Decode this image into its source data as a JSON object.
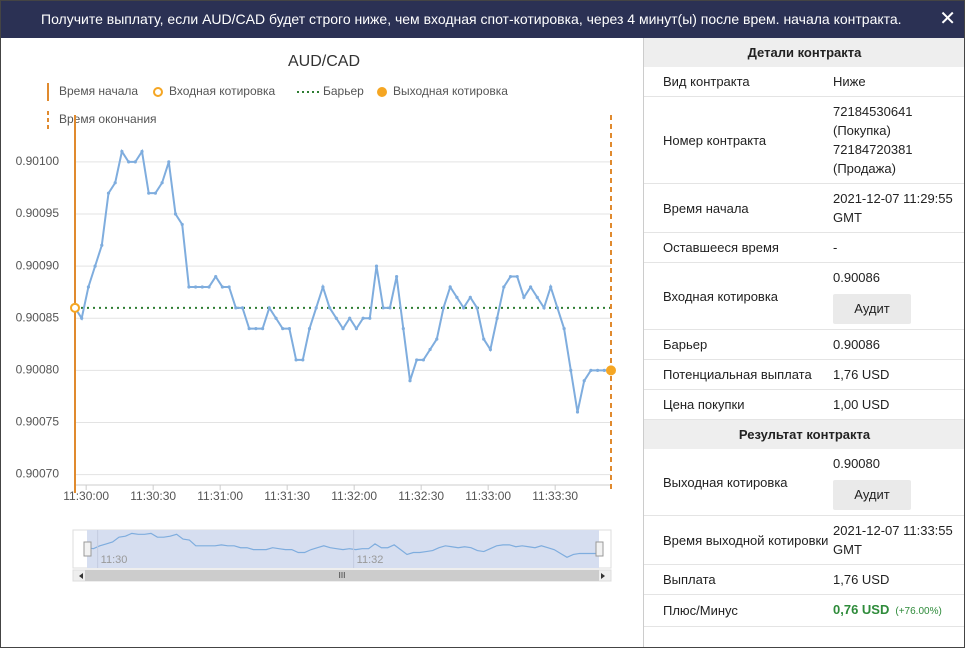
{
  "header": {
    "title": "Получите выплату, если AUD/CAD будет строго ниже, чем входная спот-котировка, через 4 минут(ы) после врем. начала контракта.",
    "close": "✕"
  },
  "chart_data": {
    "type": "line",
    "title": "AUD/CAD",
    "x": [
      "11:29:55",
      "11:29:58",
      "11:30:01",
      "11:30:04",
      "11:30:07",
      "11:30:10",
      "11:30:13",
      "11:30:16",
      "11:30:19",
      "11:30:22",
      "11:30:25",
      "11:30:28",
      "11:30:31",
      "11:30:34",
      "11:30:37",
      "11:30:40",
      "11:30:43",
      "11:30:46",
      "11:30:49",
      "11:30:52",
      "11:30:55",
      "11:30:58",
      "11:31:01",
      "11:31:04",
      "11:31:07",
      "11:31:10",
      "11:31:13",
      "11:31:16",
      "11:31:19",
      "11:31:22",
      "11:31:25",
      "11:31:28",
      "11:31:31",
      "11:31:34",
      "11:31:37",
      "11:31:40",
      "11:31:43",
      "11:31:46",
      "11:31:49",
      "11:31:52",
      "11:31:55",
      "11:31:58",
      "11:32:01",
      "11:32:04",
      "11:32:07",
      "11:32:10",
      "11:32:13",
      "11:32:16",
      "11:32:19",
      "11:32:22",
      "11:32:25",
      "11:32:28",
      "11:32:31",
      "11:32:34",
      "11:32:37",
      "11:32:40",
      "11:32:43",
      "11:32:46",
      "11:32:49",
      "11:32:52",
      "11:32:55",
      "11:32:58",
      "11:33:01",
      "11:33:04",
      "11:33:07",
      "11:33:10",
      "11:33:13",
      "11:33:16",
      "11:33:19",
      "11:33:22",
      "11:33:25",
      "11:33:28",
      "11:33:31",
      "11:33:34",
      "11:33:37",
      "11:33:40",
      "11:33:43",
      "11:33:46",
      "11:33:49",
      "11:33:52",
      "11:33:55"
    ],
    "series": [
      {
        "color": "#7fadde",
        "values": [
          0.90086,
          0.90085,
          0.90088,
          0.9009,
          0.90092,
          0.90097,
          0.90098,
          0.90101,
          0.901,
          0.901,
          0.90101,
          0.90097,
          0.90097,
          0.90098,
          0.901,
          0.90095,
          0.90094,
          0.90088,
          0.90088,
          0.90088,
          0.90088,
          0.90089,
          0.90088,
          0.90088,
          0.90086,
          0.90086,
          0.90084,
          0.90084,
          0.90084,
          0.90086,
          0.90085,
          0.90084,
          0.90084,
          0.90081,
          0.90081,
          0.90084,
          0.90086,
          0.90088,
          0.90086,
          0.90085,
          0.90084,
          0.90085,
          0.90084,
          0.90085,
          0.90085,
          0.9009,
          0.90086,
          0.90086,
          0.90089,
          0.90084,
          0.90079,
          0.90081,
          0.90081,
          0.90082,
          0.90083,
          0.90086,
          0.90088,
          0.90087,
          0.90086,
          0.90087,
          0.90086,
          0.90083,
          0.90082,
          0.90085,
          0.90088,
          0.90089,
          0.90089,
          0.90087,
          0.90088,
          0.90087,
          0.90086,
          0.90088,
          0.90086,
          0.90084,
          0.9008,
          0.90076,
          0.90079,
          0.9008,
          0.9008,
          0.9008,
          0.9008
        ]
      }
    ],
    "start_line": {
      "name": "Время начала",
      "value": "11:29:55",
      "color": "#e08a2e"
    },
    "entry_spot": {
      "name": "Входная котировка",
      "value": 0.90086,
      "color": "#f5a623"
    },
    "barrier": {
      "name": "Барьер",
      "value": 0.90086,
      "color": "#2e7d32"
    },
    "exit_spot": {
      "name": "Выходная котировка",
      "value": 0.9008,
      "color": "#f5a623"
    },
    "end_line": {
      "name": "Время окончания",
      "value": "11:33:55",
      "color": "#e08a2e"
    },
    "xlim": [
      "11:29:55",
      "11:33:55"
    ],
    "xticks": [
      "11:30:00",
      "11:30:30",
      "11:31:00",
      "11:31:30",
      "11:32:00",
      "11:32:30",
      "11:33:00",
      "11:33:30"
    ],
    "ylim": [
      0.90069,
      0.901045
    ],
    "yticks": [
      {
        "value": 0.9007,
        "label": "0.90070"
      },
      {
        "value": 0.90075,
        "label": "0.90075"
      },
      {
        "value": 0.9008,
        "label": "0.90080"
      },
      {
        "value": 0.90085,
        "label": "0.90085"
      },
      {
        "value": 0.9009,
        "label": "0.90090"
      },
      {
        "value": 0.90095,
        "label": "0.90095"
      },
      {
        "value": 0.901,
        "label": "0.90100"
      }
    ],
    "grid": true,
    "navigator": {
      "xticks": [
        "11:30",
        "11:32"
      ],
      "scroll": "III"
    }
  },
  "contract_details": {
    "title": "Детали контракта",
    "rows": [
      {
        "label": "Вид контракта",
        "value": "Ниже"
      },
      {
        "label": "Номер контракта",
        "value": "72184530641 (Покупка) 72184720381 (Продажа)"
      },
      {
        "label": "Время начала",
        "value": "2021-12-07 11:29:55 GMT"
      },
      {
        "label": "Оставшееся время",
        "value": "-"
      },
      {
        "label": "Входная котировка",
        "value": "0.90086",
        "button": "Аудит"
      },
      {
        "label": "Барьер",
        "value": "0.90086"
      },
      {
        "label": "Потенциальная выплата",
        "value": "1,76 USD"
      },
      {
        "label": "Цена покупки",
        "value": "1,00 USD"
      }
    ]
  },
  "contract_result": {
    "title": "Результат контракта",
    "rows": [
      {
        "label": "Выходная котировка",
        "value": "0.90080",
        "button": "Аудит"
      },
      {
        "label": "Время выходной котировки",
        "value": "2021-12-07 11:33:55 GMT"
      },
      {
        "label": "Выплата",
        "value": "1,76 USD"
      },
      {
        "label": "Плюс/Минус",
        "value": "0,76 USD",
        "note": "(+76.00%)"
      }
    ]
  }
}
